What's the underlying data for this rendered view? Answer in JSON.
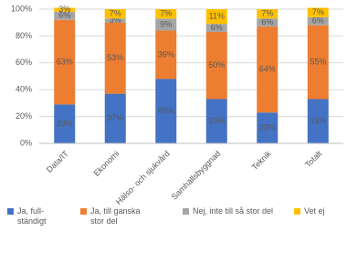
{
  "chart_data": {
    "type": "stacked_bar",
    "categories": [
      "Data/IT",
      "Ekonomi",
      "Hälso- och sjukvård",
      "Samhällsbyggnad",
      "Teknik",
      "Totalt"
    ],
    "series": [
      {
        "name": "Ja, full-ständigt",
        "color": "#4472c4",
        "values": [
          29,
          37,
          48,
          33,
          23,
          33
        ],
        "value_labels": [
          "29%",
          "37%",
          "48%",
          "33%",
          "23%",
          "33%"
        ]
      },
      {
        "name": "Ja, till ganska stor del",
        "color": "#ed7d31",
        "values": [
          63,
          53,
          36,
          50,
          64,
          55
        ],
        "value_labels": [
          "63%",
          "53%",
          "36%",
          "50%",
          "64%",
          "55%"
        ]
      },
      {
        "name": "Nej, inte till så stor del",
        "color": "#a5a5a5",
        "values": [
          6,
          3,
          9,
          6,
          6,
          6
        ],
        "value_labels": [
          "6%",
          "3%",
          "9%",
          "6%",
          "6%",
          "6%"
        ]
      },
      {
        "name": "Vet ej",
        "color": "#ffc000",
        "values": [
          3,
          7,
          7,
          11,
          7,
          7
        ],
        "value_labels": [
          "3%",
          "7%",
          "7%",
          "11%",
          "7%",
          "7%"
        ]
      }
    ],
    "ylim": [
      0,
      100
    ],
    "yticks": [
      {
        "value": 0,
        "label": "0%"
      },
      {
        "value": 20,
        "label": "20%"
      },
      {
        "value": 40,
        "label": "40%"
      },
      {
        "value": 60,
        "label": "60%"
      },
      {
        "value": 80,
        "label": "80%"
      },
      {
        "value": 100,
        "label": "100%"
      }
    ],
    "grid": true
  }
}
